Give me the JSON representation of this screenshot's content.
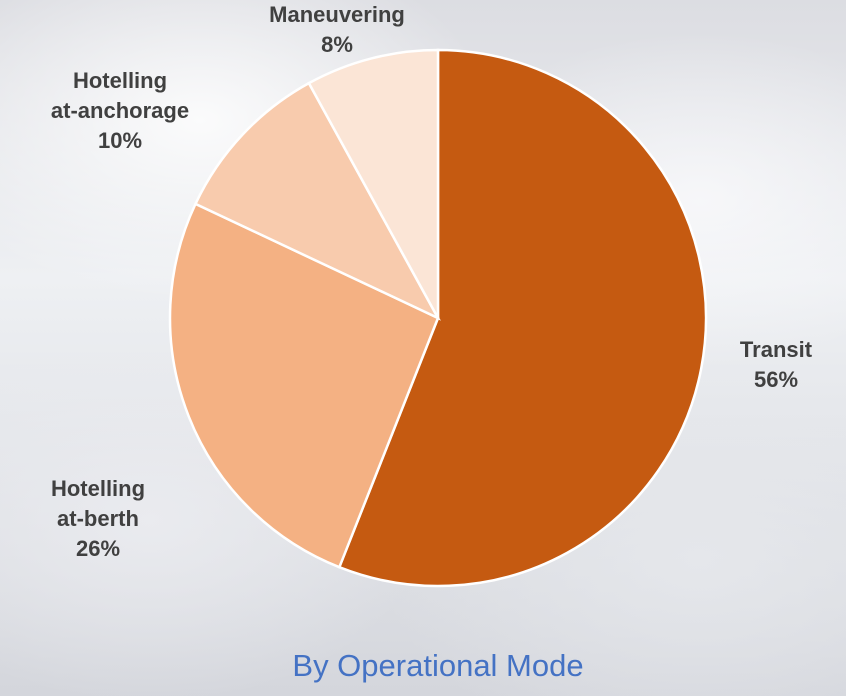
{
  "chart_data": {
    "type": "pie",
    "title": "By Operational Mode",
    "categories": [
      "Transit",
      "Hotelling\nat-berth",
      "Hotelling\nat-anchorage",
      "Maneuvering"
    ],
    "values": [
      56,
      26,
      10,
      8
    ],
    "value_labels": [
      "56%",
      "26%",
      "10%",
      "8%"
    ],
    "colors": [
      "#c55a11",
      "#f4b183",
      "#f8cbad",
      "#fbe5d6"
    ]
  }
}
